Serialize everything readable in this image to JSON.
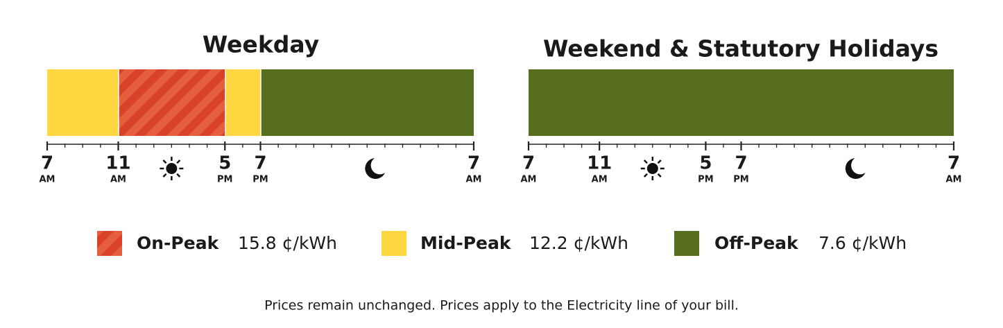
{
  "weekday": {
    "title": "Weekday",
    "ticks": [
      {
        "hour": "7",
        "period": "AM"
      },
      {
        "hour": "11",
        "period": "AM"
      },
      {
        "hour": "5",
        "period": "PM"
      },
      {
        "hour": "7",
        "period": "PM"
      },
      {
        "hour": "7",
        "period": "AM"
      }
    ]
  },
  "weekend": {
    "title": "Weekend & Statutory Holidays",
    "ticks": [
      {
        "hour": "7",
        "period": "AM"
      },
      {
        "hour": "11",
        "period": "AM"
      },
      {
        "hour": "5",
        "period": "PM"
      },
      {
        "hour": "7",
        "period": "PM"
      },
      {
        "hour": "7",
        "period": "AM"
      }
    ]
  },
  "legend": [
    {
      "name": "On-Peak",
      "price": "15.8 ¢/kWh"
    },
    {
      "name": "Mid-Peak",
      "price": "12.2 ¢/kWh"
    },
    {
      "name": "Off-Peak",
      "price": "7.6 ¢/kWh"
    }
  ],
  "footnote": "Prices remain unchanged. Prices apply to the Electricity line of your bill."
}
